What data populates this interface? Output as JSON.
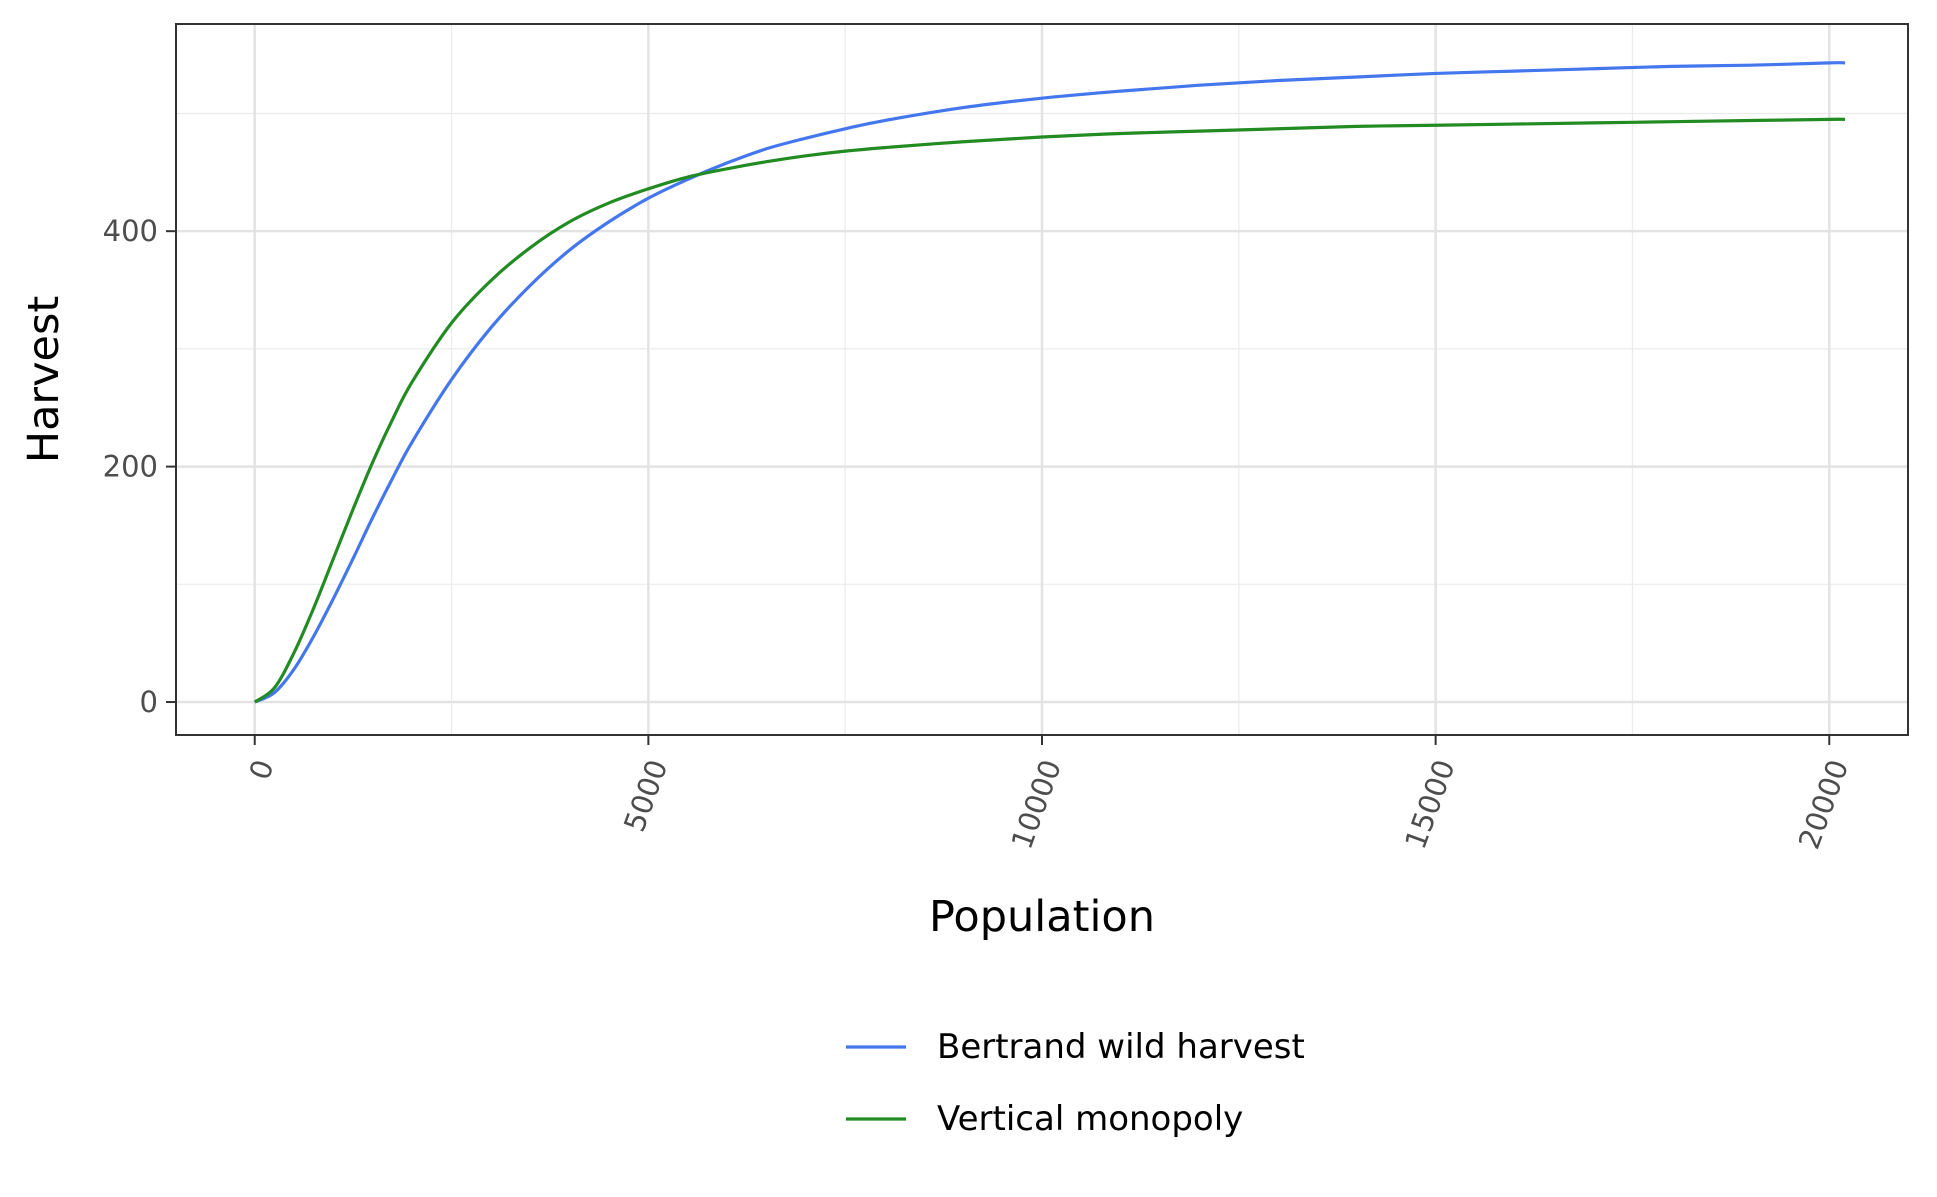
{
  "chart_data": {
    "type": "line",
    "title": "",
    "xlabel": "Population",
    "ylabel": "Harvest",
    "xlim": [
      -1000,
      21000
    ],
    "ylim": [
      -28,
      576
    ],
    "x_ticks": [
      0,
      5000,
      10000,
      15000,
      20000
    ],
    "x_tick_labels": [
      "0",
      "5000",
      "10000",
      "15000",
      "20000"
    ],
    "x_minor_ticks": [
      2500,
      7500,
      12500,
      17500
    ],
    "y_ticks": [
      0,
      200,
      400
    ],
    "y_tick_labels": [
      "0",
      "200",
      "400"
    ],
    "y_minor_ticks": [
      100,
      300,
      500
    ],
    "grid": true,
    "legend_position": "bottom",
    "x": [
      0,
      250,
      500,
      750,
      1000,
      1250,
      1500,
      1750,
      2000,
      2500,
      3000,
      3500,
      4000,
      4500,
      5000,
      5500,
      6000,
      6500,
      7000,
      7500,
      8000,
      9000,
      10000,
      11000,
      12000,
      13000,
      14000,
      15000,
      16000,
      17000,
      18000,
      19000,
      20000,
      20200
    ],
    "series": [
      {
        "name": "Bertrand wild harvest",
        "color": "#4477ee",
        "values": [
          0,
          8,
          28,
          56,
          88,
          122,
          157,
          190,
          221,
          274,
          318,
          354,
          384,
          408,
          428,
          444,
          458,
          470,
          479,
          487,
          494,
          505,
          513,
          519,
          524,
          528,
          531,
          534,
          536,
          538,
          540,
          541,
          543,
          543
        ]
      },
      {
        "name": "Vertical monopoly",
        "color": "#228b22",
        "values": [
          0,
          12,
          42,
          80,
          122,
          164,
          204,
          240,
          272,
          322,
          358,
          386,
          408,
          424,
          436,
          446,
          453,
          459,
          464,
          468,
          471,
          476,
          480,
          483,
          485,
          487,
          489,
          490,
          491,
          492,
          493,
          494,
          495,
          495
        ]
      }
    ]
  }
}
